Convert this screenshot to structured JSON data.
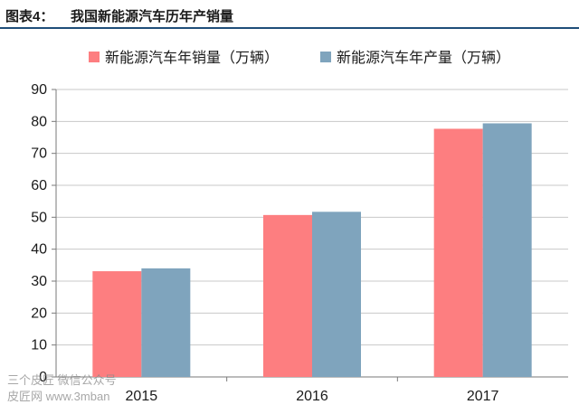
{
  "header": {
    "label": "图表4：",
    "title": "我国新能源汽车历年产销量"
  },
  "watermark": {
    "line1": "三个皮匠  微信公众号",
    "line2": "皮匠网  www.3mban"
  },
  "colors": {
    "sales": "#fd7e80",
    "production": "#7fa4bd",
    "header_rule": "#1f4e79",
    "grid": "#c8c8c8"
  },
  "chart_data": {
    "type": "bar",
    "categories": [
      "2015",
      "2016",
      "2017"
    ],
    "series": [
      {
        "name": "新能源汽车年销量（万辆）",
        "values": [
          33.1,
          50.7,
          77.7
        ]
      },
      {
        "name": "新能源汽车年产量（万辆）",
        "values": [
          34.0,
          51.7,
          79.4
        ]
      }
    ],
    "title": "",
    "xlabel": "",
    "ylabel": "",
    "ylim": [
      0,
      90
    ],
    "yticks": [
      "0",
      "10",
      "20",
      "30",
      "40",
      "50",
      "60",
      "70",
      "80",
      "90"
    ],
    "grid": true,
    "legend": "top"
  }
}
